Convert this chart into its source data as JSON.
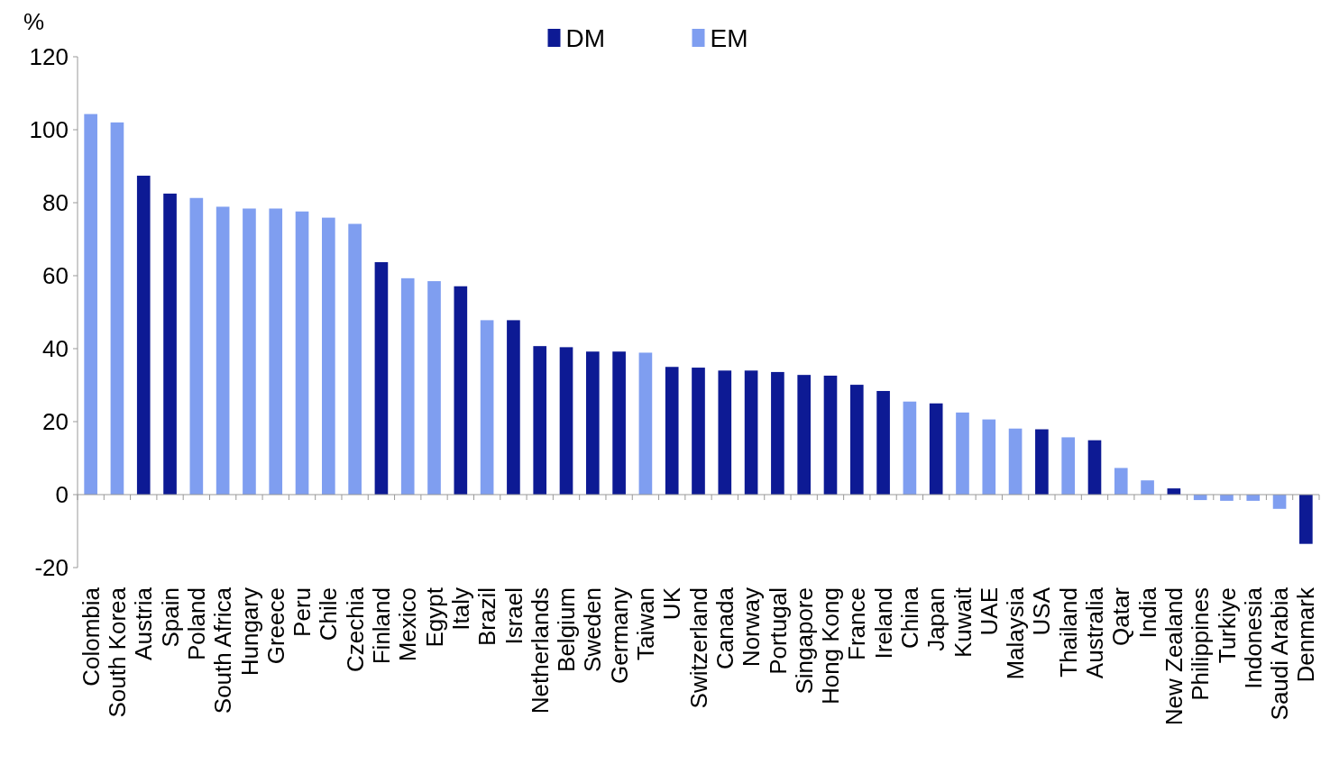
{
  "chart_data": {
    "type": "bar",
    "ylabel": "%",
    "stacked": true,
    "legend": "top",
    "categories": [
      "Colombia",
      "South Korea",
      "Austria",
      "Spain",
      "Poland",
      "South Africa",
      "Hungary",
      "Greece",
      "Peru",
      "Chile",
      "Czechia",
      "Finland",
      "Mexico",
      "Egypt",
      "Italy",
      "Brazil",
      "Israel",
      "Netherlands",
      "Belgium",
      "Sweden",
      "Germany",
      "Taiwan",
      "UK",
      "Switzerland",
      "Canada",
      "Norway",
      "Portugal",
      "Singapore",
      "Hong Kong",
      "France",
      "Ireland",
      "China",
      "Japan",
      "Kuwait",
      "UAE",
      "Malaysia",
      "USA",
      "Thailand",
      "Australia",
      "Qatar",
      "India",
      "New Zealand",
      "Philippines",
      "Turkiye",
      "Indonesia",
      "Saudi Arabia",
      "Denmark"
    ],
    "series": [
      {
        "name": "DM",
        "color": "#0d1a94",
        "values": [
          null,
          null,
          87.4,
          82.5,
          null,
          null,
          null,
          null,
          null,
          null,
          null,
          63.7,
          null,
          null,
          57.1,
          null,
          47.8,
          40.7,
          40.4,
          39.2,
          39.2,
          null,
          35.0,
          34.8,
          34.0,
          34.0,
          33.6,
          32.8,
          32.6,
          30.1,
          28.4,
          null,
          25.0,
          null,
          null,
          null,
          17.9,
          null,
          14.9,
          null,
          null,
          1.7,
          null,
          null,
          null,
          null,
          -13.5
        ]
      },
      {
        "name": "EM",
        "color": "#7f9ef0",
        "values": [
          104.3,
          102.0,
          null,
          null,
          81.3,
          78.9,
          78.4,
          78.4,
          77.6,
          75.9,
          74.2,
          null,
          59.3,
          58.5,
          null,
          47.8,
          null,
          null,
          null,
          null,
          null,
          38.9,
          null,
          null,
          null,
          null,
          null,
          null,
          null,
          null,
          null,
          25.5,
          null,
          22.5,
          20.6,
          18.1,
          null,
          15.7,
          null,
          7.3,
          3.9,
          null,
          -1.5,
          -1.7,
          -1.7,
          -3.9,
          null
        ]
      }
    ],
    "ylim": [
      -20,
      120
    ],
    "yticks": [
      -20,
      0,
      20,
      40,
      60,
      80,
      100,
      120
    ]
  }
}
